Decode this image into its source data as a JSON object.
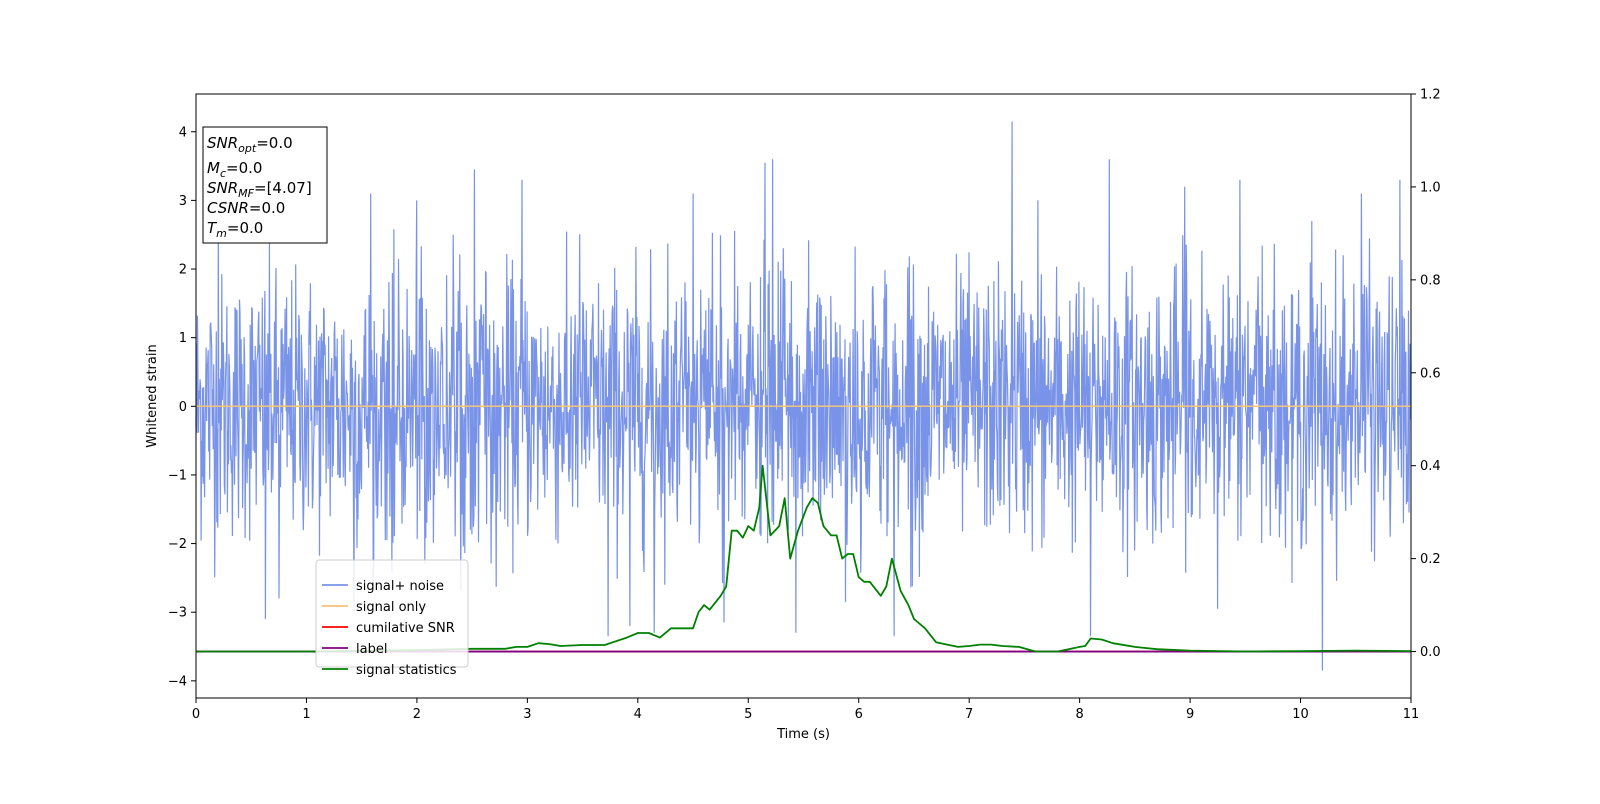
{
  "chart_data": {
    "type": "line",
    "title": "",
    "xlabel": "Time (s)",
    "ylabel": "Whitened strain",
    "xlim": [
      0,
      11
    ],
    "ylim": [
      -4.25,
      4.55
    ],
    "y2lim": [
      -0.1,
      1.2
    ],
    "x_ticks": [
      0,
      1,
      2,
      3,
      4,
      5,
      6,
      7,
      8,
      9,
      10,
      11
    ],
    "y_ticks": [
      -4,
      -3,
      -2,
      -1,
      0,
      1,
      2,
      3,
      4
    ],
    "y2_ticks": [
      0.0,
      0.2,
      0.4,
      0.6,
      0.8,
      1.0,
      1.2
    ],
    "grid": false,
    "legend_position": "lower-left",
    "info_box": {
      "snr_opt": {
        "base": "SNR",
        "sub": "opt",
        "value": "=0.0"
      },
      "mc": {
        "base": "M",
        "sub": "c",
        "value": "=0.0"
      },
      "snr_mf": {
        "base": "SNR",
        "sub": "MF",
        "value": "=[4.07]"
      },
      "csnr": {
        "base": "CSNR",
        "sub": "",
        "value": "=0.0"
      },
      "tm": {
        "base": "T",
        "sub": "m",
        "value": "=0.0"
      }
    },
    "series": [
      {
        "name": "signal+ noise",
        "color": "#7893e8",
        "axis": "left",
        "description_values": "white noise, mean 0, std ~0.9, sampled densely over 0–11 s",
        "spikes": [
          [
            0.63,
            -3.1
          ],
          [
            0.75,
            -2.8
          ],
          [
            1.43,
            -3.0
          ],
          [
            1.58,
            3.1
          ],
          [
            2.52,
            3.45
          ],
          [
            2.95,
            3.3
          ],
          [
            3.73,
            -3.35
          ],
          [
            3.93,
            -3.2
          ],
          [
            4.15,
            -3.3
          ],
          [
            4.78,
            -3.15
          ],
          [
            5.15,
            3.55
          ],
          [
            5.22,
            3.6
          ],
          [
            5.43,
            -3.3
          ],
          [
            5.88,
            -2.85
          ],
          [
            6.32,
            -3.35
          ],
          [
            7.39,
            4.15
          ],
          [
            7.62,
            3.0
          ],
          [
            8.1,
            -3.35
          ],
          [
            8.27,
            3.6
          ],
          [
            8.95,
            3.2
          ],
          [
            9.25,
            -2.95
          ],
          [
            9.45,
            3.3
          ],
          [
            10.2,
            -3.85
          ],
          [
            10.1,
            2.7
          ],
          [
            10.55,
            3.1
          ],
          [
            10.9,
            3.3
          ],
          [
            4.5,
            3.1
          ],
          [
            2.0,
            3.0
          ],
          [
            0.2,
            2.6
          ]
        ]
      },
      {
        "name": "signal only",
        "color": "#f5c37a",
        "axis": "left",
        "x": [
          0,
          11
        ],
        "y": [
          0,
          0
        ]
      },
      {
        "name": "cumilative SNR",
        "color": "#ff0000",
        "axis": "right",
        "x": [
          0,
          11
        ],
        "y": [
          0,
          0
        ]
      },
      {
        "name": "label",
        "color": "#800080",
        "axis": "right",
        "x": [
          0,
          11
        ],
        "y": [
          0,
          0
        ]
      },
      {
        "name": "signal statistics",
        "color": "#008000",
        "axis": "right",
        "x": [
          0,
          1,
          2,
          2.5,
          2.8,
          2.9,
          3.0,
          3.1,
          3.2,
          3.3,
          3.5,
          3.7,
          3.8,
          3.9,
          4.0,
          4.1,
          4.2,
          4.3,
          4.4,
          4.5,
          4.55,
          4.6,
          4.65,
          4.75,
          4.8,
          4.85,
          4.9,
          4.95,
          5.0,
          5.05,
          5.1,
          5.13,
          5.2,
          5.28,
          5.33,
          5.38,
          5.45,
          5.53,
          5.58,
          5.63,
          5.68,
          5.75,
          5.8,
          5.85,
          5.9,
          5.95,
          6.0,
          6.05,
          6.1,
          6.2,
          6.25,
          6.3,
          6.38,
          6.45,
          6.5,
          6.6,
          6.7,
          6.8,
          6.9,
          7.0,
          7.1,
          7.2,
          7.3,
          7.45,
          7.6,
          7.8,
          7.9,
          8.0,
          8.05,
          8.1,
          8.2,
          8.3,
          8.5,
          8.7,
          9.0,
          9.5,
          10.0,
          10.5,
          11.0
        ],
        "y": [
          0.0,
          0.0,
          0.003,
          0.006,
          0.006,
          0.01,
          0.01,
          0.018,
          0.016,
          0.012,
          0.014,
          0.014,
          0.022,
          0.03,
          0.04,
          0.04,
          0.03,
          0.05,
          0.05,
          0.05,
          0.085,
          0.1,
          0.09,
          0.12,
          0.14,
          0.26,
          0.26,
          0.245,
          0.27,
          0.26,
          0.31,
          0.4,
          0.25,
          0.27,
          0.33,
          0.2,
          0.26,
          0.31,
          0.33,
          0.32,
          0.27,
          0.25,
          0.25,
          0.2,
          0.21,
          0.21,
          0.16,
          0.15,
          0.15,
          0.12,
          0.14,
          0.2,
          0.13,
          0.1,
          0.07,
          0.05,
          0.02,
          0.015,
          0.01,
          0.012,
          0.015,
          0.015,
          0.012,
          0.01,
          0.0,
          0.0,
          0.005,
          0.01,
          0.012,
          0.028,
          0.026,
          0.018,
          0.01,
          0.005,
          0.002,
          0.0,
          0.001,
          0.002,
          0.001
        ]
      }
    ]
  }
}
